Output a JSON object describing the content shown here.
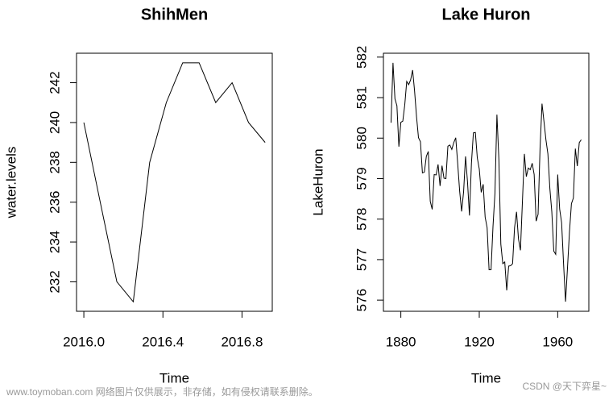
{
  "chart_data": [
    {
      "type": "line",
      "title": "ShihMen",
      "xlabel": "Time",
      "ylabel": "water.levels",
      "color": "#000000",
      "grid": false,
      "x": [
        2016.0,
        2016.083,
        2016.167,
        2016.25,
        2016.333,
        2016.417,
        2016.5,
        2016.583,
        2016.667,
        2016.75,
        2016.833,
        2016.917
      ],
      "values": [
        240,
        236,
        232,
        231,
        238,
        241,
        243,
        243,
        241,
        242,
        240,
        239
      ],
      "xlim": [
        2015.963,
        2016.953
      ],
      "ylim": [
        230.52,
        243.48
      ],
      "xticks": [
        {
          "value": 2016.0,
          "label": "2016.0"
        },
        2016.4,
        2016.8
      ],
      "yticks": [
        232,
        234,
        236,
        238,
        240,
        242
      ]
    },
    {
      "type": "line",
      "title": "Lake Huron",
      "xlabel": "Time",
      "ylabel": "LakeHuron",
      "color": "#000000",
      "grid": false,
      "x": [
        1875,
        1876,
        1877,
        1878,
        1879,
        1880,
        1881,
        1882,
        1883,
        1884,
        1885,
        1886,
        1887,
        1888,
        1889,
        1890,
        1891,
        1892,
        1893,
        1894,
        1895,
        1896,
        1897,
        1898,
        1899,
        1900,
        1901,
        1902,
        1903,
        1904,
        1905,
        1906,
        1907,
        1908,
        1909,
        1910,
        1911,
        1912,
        1913,
        1914,
        1915,
        1916,
        1917,
        1918,
        1919,
        1920,
        1921,
        1922,
        1923,
        1924,
        1925,
        1926,
        1927,
        1928,
        1929,
        1930,
        1931,
        1932,
        1933,
        1934,
        1935,
        1936,
        1937,
        1938,
        1939,
        1940,
        1941,
        1942,
        1943,
        1944,
        1945,
        1946,
        1947,
        1948,
        1949,
        1950,
        1951,
        1952,
        1953,
        1954,
        1955,
        1956,
        1957,
        1958,
        1959,
        1960,
        1961,
        1962,
        1963,
        1964,
        1965,
        1966,
        1967,
        1968,
        1969,
        1970,
        1971,
        1972
      ],
      "values": [
        580.38,
        581.86,
        580.97,
        580.8,
        579.79,
        580.39,
        580.42,
        580.82,
        581.4,
        581.32,
        581.44,
        581.68,
        581.17,
        580.53,
        580.01,
        579.91,
        579.14,
        579.16,
        579.55,
        579.67,
        578.44,
        578.24,
        579.1,
        579.09,
        579.35,
        578.82,
        579.32,
        579.01,
        579.0,
        579.8,
        579.83,
        579.72,
        579.89,
        580.01,
        579.37,
        578.69,
        578.19,
        578.67,
        579.55,
        578.92,
        578.09,
        579.37,
        580.13,
        580.14,
        579.51,
        579.24,
        578.66,
        578.86,
        578.05,
        577.79,
        576.75,
        576.75,
        577.82,
        578.64,
        580.58,
        579.48,
        577.38,
        576.9,
        576.94,
        576.24,
        576.84,
        576.85,
        576.9,
        577.79,
        578.18,
        577.51,
        577.23,
        578.42,
        579.61,
        579.05,
        579.26,
        579.22,
        579.38,
        579.1,
        577.95,
        578.12,
        579.75,
        580.85,
        580.41,
        579.96,
        579.61,
        578.76,
        578.18,
        577.21,
        577.13,
        579.1,
        578.25,
        577.91,
        576.89,
        575.96,
        576.8,
        577.68,
        578.38,
        578.52,
        579.74,
        579.31,
        579.89,
        579.96
      ],
      "xlim": [
        1871.12,
        1975.88
      ],
      "ylim": [
        575.724,
        582.096
      ],
      "xticks": [
        1880,
        1920,
        1960
      ],
      "yticks": [
        576,
        577,
        578,
        579,
        580,
        581,
        582
      ]
    }
  ],
  "watermark": {
    "left": "www.toymoban.com 网络图片仅供展示，非存储，如有侵权请联系删除。",
    "right": "CSDN @天下弈星~"
  }
}
